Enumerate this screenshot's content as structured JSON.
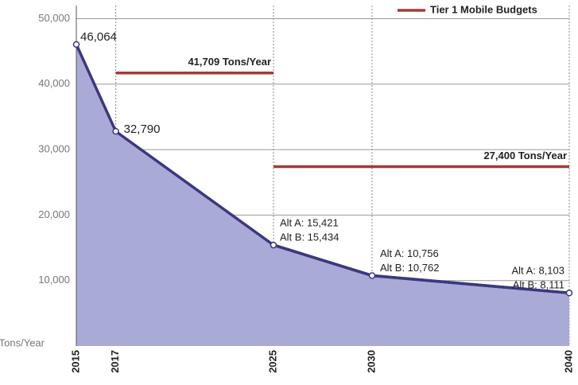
{
  "chart_data": {
    "type": "area",
    "y_label": "Tons/Year",
    "x": [
      2015,
      2017,
      2025,
      2030,
      2040
    ],
    "xlim": [
      2015,
      2040
    ],
    "xticks": [
      2015,
      2017,
      2025,
      2030,
      2040
    ],
    "ylim": [
      0,
      52000
    ],
    "yticks": [
      {
        "value": 10000,
        "label": "10,000"
      },
      {
        "value": 20000,
        "label": "20,000"
      },
      {
        "value": 30000,
        "label": "30,000"
      },
      {
        "value": 40000,
        "label": "40,000"
      },
      {
        "value": 50000,
        "label": "50,000"
      }
    ],
    "grid": true,
    "series": [
      {
        "color": "#3b3880",
        "fill": "#aaaad6",
        "values": [
          46064,
          32790,
          15421,
          10756,
          8103
        ],
        "value_labels": [
          "46,064",
          "32,790",
          "Alt A: 15,421",
          "Alt A: 10,756",
          "Alt A: 8,103"
        ]
      },
      {
        "color": "#3b3880",
        "values": [
          null,
          null,
          15434,
          10762,
          8111
        ],
        "value_labels": [
          null,
          null,
          "Alt B: 15,434",
          "Alt B: 10,762",
          "Alt B: 8,111"
        ]
      }
    ],
    "budgets": {
      "name": "Tier 1 Mobile Budgets",
      "color": "#a33a3a",
      "segments": [
        {
          "x": [
            2017,
            2025
          ],
          "value": 41709,
          "label": "41,709 Tons/Year"
        },
        {
          "x": [
            2025,
            2040
          ],
          "value": 27400,
          "label": "27,400 Tons/Year"
        }
      ]
    },
    "legend": "top-right"
  }
}
